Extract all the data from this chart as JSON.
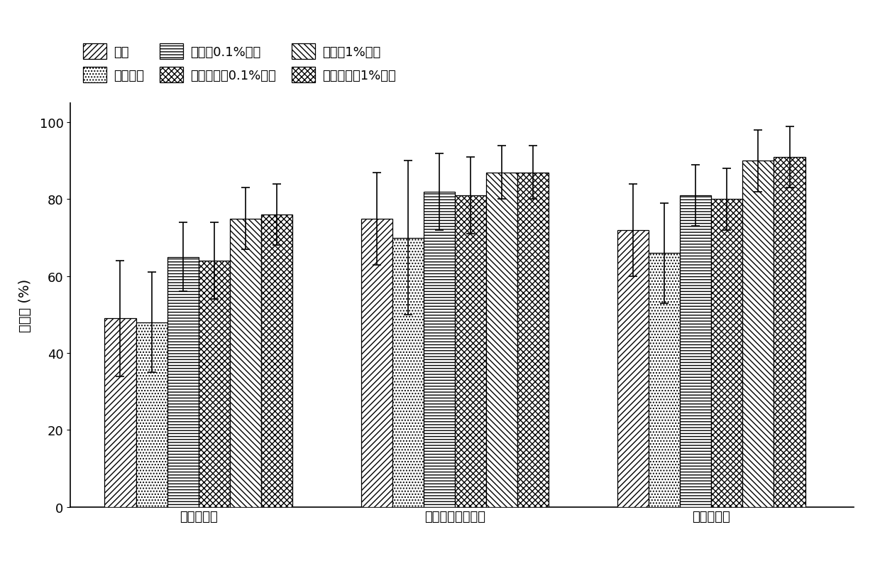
{
  "categories": [
    "盐酸氯苯胍",
    "对氯苯甲酰胺乙酸",
    "对氯苯甲酸"
  ],
  "series_labels": [
    "乙腓",
    "乙酸乙酯",
    "乙腓含0.1%甲酸",
    "乙酸乙酯含0.1%甲酸",
    "乙腓含1%甲酸",
    "乙酸乙酯含1%甲酸"
  ],
  "values": [
    [
      49,
      48,
      65,
      64,
      75,
      76
    ],
    [
      75,
      70,
      82,
      81,
      87,
      87
    ],
    [
      72,
      66,
      81,
      80,
      90,
      91
    ]
  ],
  "errors": [
    [
      15,
      13,
      9,
      10,
      8,
      8
    ],
    [
      12,
      20,
      10,
      10,
      7,
      7
    ],
    [
      12,
      13,
      8,
      8,
      8,
      8
    ]
  ],
  "ylabel": "回收率 (%)",
  "ylim": [
    0,
    105
  ],
  "yticks": [
    0,
    20,
    40,
    60,
    80,
    100
  ],
  "bar_width": 0.11,
  "background_color": "#ffffff",
  "bar_edge_color": "#000000",
  "axis_fontsize": 14,
  "tick_fontsize": 13,
  "legend_fontsize": 13
}
